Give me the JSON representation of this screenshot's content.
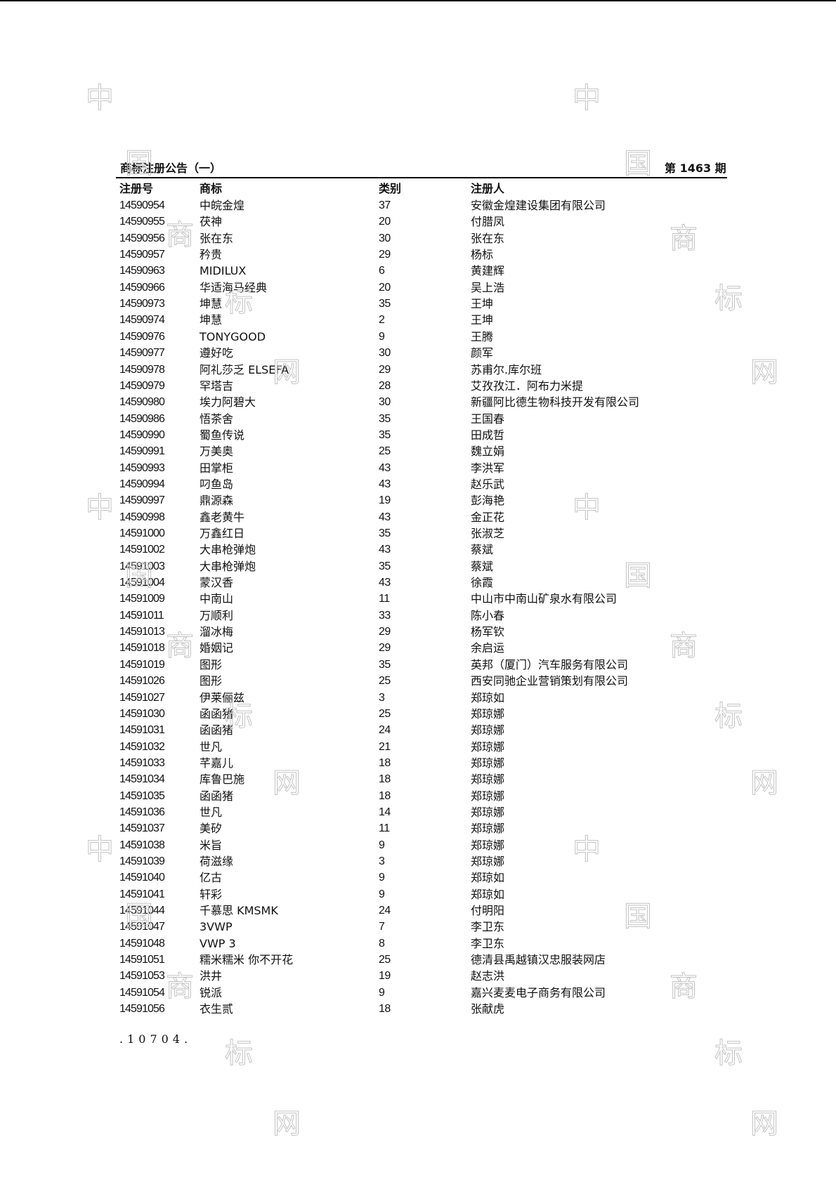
{
  "header": {
    "title": "商标注册公告（一）",
    "issue": "第 1463 期"
  },
  "columns": [
    "注册号",
    "商标",
    "类别",
    "注册人"
  ],
  "rows": [
    [
      "14590954",
      "中皖金煌",
      "37",
      "安徽金煌建设集团有限公司"
    ],
    [
      "14590955",
      "茯神",
      "20",
      "付腊凤"
    ],
    [
      "14590956",
      "张在东",
      "30",
      "张在东"
    ],
    [
      "14590957",
      "矜贵",
      "29",
      "杨标"
    ],
    [
      "14590963",
      "MIDILUX",
      "6",
      "黄建辉"
    ],
    [
      "14590966",
      "华适海马经典",
      "20",
      "吴上浩"
    ],
    [
      "14590973",
      "坤慧",
      "35",
      "王坤"
    ],
    [
      "14590974",
      "坤慧",
      "2",
      "王坤"
    ],
    [
      "14590976",
      "TONYGOOD",
      "9",
      "王腾"
    ],
    [
      "14590977",
      "遵好吃",
      "30",
      "颜军"
    ],
    [
      "14590978",
      "阿礼莎乏 ELSEFA",
      "29",
      "苏甫尔.库尔班"
    ],
    [
      "14590979",
      "罕塔吉",
      "28",
      "艾孜孜江．阿布力米提"
    ],
    [
      "14590980",
      "埃力阿碧大",
      "30",
      "新疆阿比德生物科技开发有限公司"
    ],
    [
      "14590986",
      "悟茶舍",
      "35",
      "王国春"
    ],
    [
      "14590990",
      "蜀鱼传说",
      "35",
      "田成哲"
    ],
    [
      "14590991",
      "万美奥",
      "25",
      "魏立娟"
    ],
    [
      "14590993",
      "田掌柜",
      "43",
      "李洪军"
    ],
    [
      "14590994",
      "叼鱼岛",
      "43",
      "赵乐武"
    ],
    [
      "14590997",
      "鼎源森",
      "19",
      "彭海艳"
    ],
    [
      "14590998",
      "鑫老黄牛",
      "43",
      "金正花"
    ],
    [
      "14591000",
      "万鑫红日",
      "35",
      "张淑芝"
    ],
    [
      "14591002",
      "大串枪弹炮",
      "43",
      "蔡斌"
    ],
    [
      "14591003",
      "大串枪弹炮",
      "35",
      "蔡斌"
    ],
    [
      "14591004",
      "蒙汉香",
      "43",
      "徐霞"
    ],
    [
      "14591009",
      "中南山",
      "11",
      "中山市中南山矿泉水有限公司"
    ],
    [
      "14591011",
      "万顺利",
      "33",
      "陈小春"
    ],
    [
      "14591013",
      "溜冰梅",
      "29",
      "杨军钦"
    ],
    [
      "14591018",
      "婚姻记",
      "29",
      "余启运"
    ],
    [
      "14591019",
      "图形",
      "35",
      "英邦（厦门）汽车服务有限公司"
    ],
    [
      "14591026",
      "图形",
      "25",
      "西安同驰企业营销策划有限公司"
    ],
    [
      "14591027",
      "伊莱俪兹",
      "3",
      "郑琼如"
    ],
    [
      "14591030",
      "函函猪",
      "25",
      "郑琼娜"
    ],
    [
      "14591031",
      "函函猪",
      "24",
      "郑琼娜"
    ],
    [
      "14591032",
      "世凡",
      "21",
      "郑琼娜"
    ],
    [
      "14591033",
      "芊嘉儿",
      "18",
      "郑琼娜"
    ],
    [
      "14591034",
      "库鲁巴施",
      "18",
      "郑琼娜"
    ],
    [
      "14591035",
      "函函猪",
      "18",
      "郑琼娜"
    ],
    [
      "14591036",
      "世凡",
      "14",
      "郑琼娜"
    ],
    [
      "14591037",
      "美矽",
      "11",
      "郑琼娜"
    ],
    [
      "14591038",
      "米旨",
      "9",
      "郑琼娜"
    ],
    [
      "14591039",
      "荷滋缘",
      "3",
      "郑琼娜"
    ],
    [
      "14591040",
      "亿古",
      "9",
      "郑琼如"
    ],
    [
      "14591041",
      "轩彩",
      "9",
      "郑琼如"
    ],
    [
      "14591044",
      "千慕思 KMSMK",
      "24",
      "付明阳"
    ],
    [
      "14591047",
      "3VWP",
      "7",
      "李卫东"
    ],
    [
      "14591048",
      "VWP 3",
      "8",
      "李卫东"
    ],
    [
      "14591051",
      "糯米糯米 你不开花",
      "25",
      "德清县禹越镇汉忠服装网店"
    ],
    [
      "14591053",
      "洪井",
      "19",
      "赵志洪"
    ],
    [
      "14591054",
      "锐派",
      "9",
      "嘉兴麦麦电子商务有限公司"
    ],
    [
      "14591056",
      "衣生贰",
      "18",
      "张献虎"
    ]
  ],
  "footer": {
    "page_number": ".10704."
  },
  "watermark": {
    "chars": [
      "中",
      "国",
      "商",
      "标",
      "网"
    ],
    "color": "#c4c4c4"
  }
}
